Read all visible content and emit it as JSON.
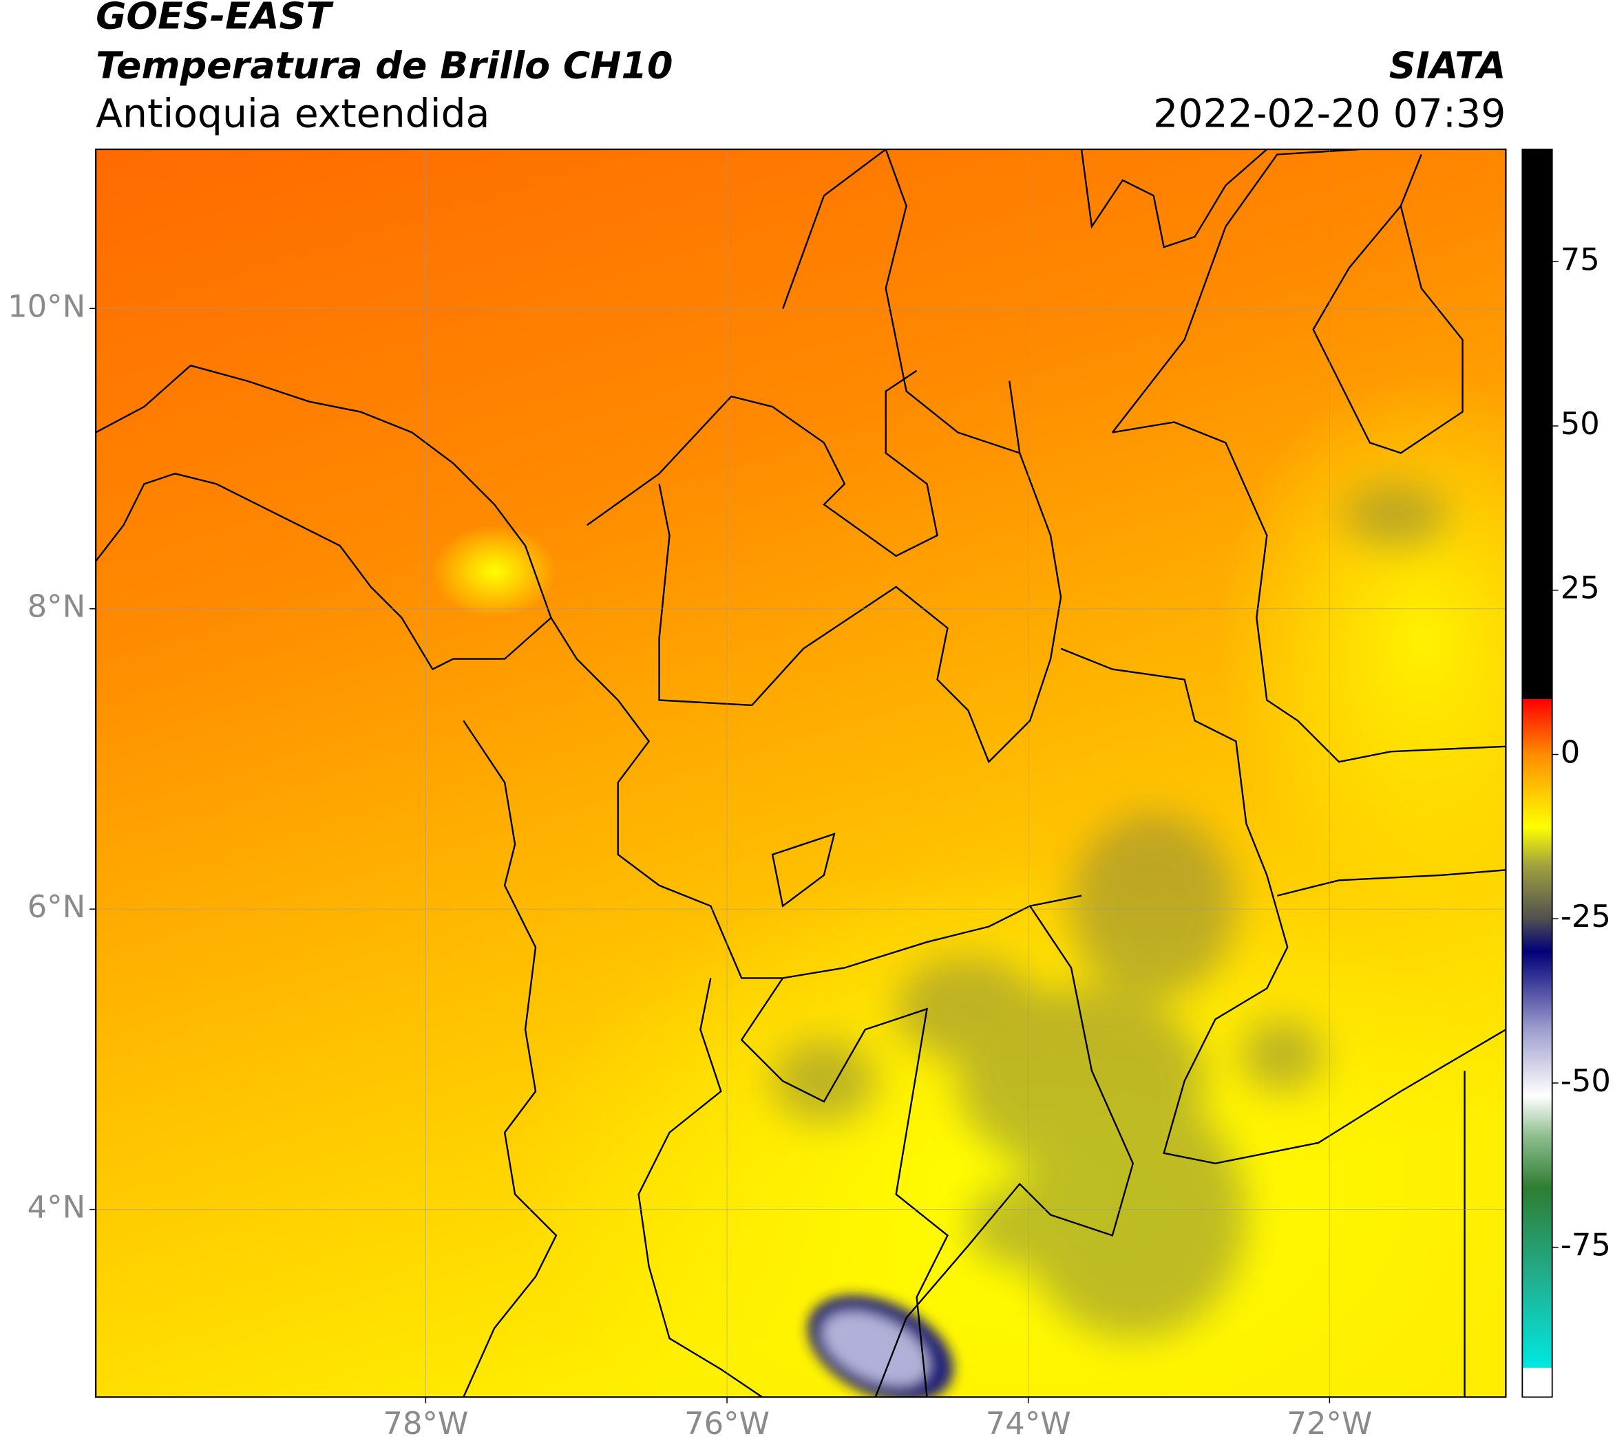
{
  "header": {
    "title": "GOES-EAST",
    "subtitle": "Temperatura de Brillo CH10",
    "region": "Antioquia extendida",
    "source": "SIATA",
    "datetime": "2022-02-20 07:39"
  },
  "map": {
    "xlim": [
      -80.19,
      -70.83
    ],
    "ylim": [
      2.75,
      11.06
    ],
    "xticks": [
      {
        "value": -78,
        "label": "78°W"
      },
      {
        "value": -76,
        "label": "76°W"
      },
      {
        "value": -74,
        "label": "74°W"
      },
      {
        "value": -72,
        "label": "72°W"
      }
    ],
    "yticks": [
      {
        "value": 4,
        "label": "4°N"
      },
      {
        "value": 6,
        "label": "6°N"
      },
      {
        "value": 8,
        "label": "8°N"
      },
      {
        "value": 10,
        "label": "10°N"
      }
    ],
    "grid": true
  },
  "colorbar": {
    "lim": [
      -97.8,
      92.1
    ],
    "ticks": [
      75,
      50,
      25,
      0,
      -25,
      -50,
      -75
    ],
    "stops": [
      {
        "value": -97.8,
        "color": "#ffffff"
      },
      {
        "value": -93.4,
        "color": "#ffffff"
      },
      {
        "value": -93.3,
        "color": "#00e8e0"
      },
      {
        "value": -80,
        "color": "#20b090"
      },
      {
        "value": -66,
        "color": "#2e7d32"
      },
      {
        "value": -58,
        "color": "#8fbf8f"
      },
      {
        "value": -52,
        "color": "#ffffff"
      },
      {
        "value": -42,
        "color": "#a0a0d0"
      },
      {
        "value": -30,
        "color": "#00007a"
      },
      {
        "value": -25,
        "color": "#505050"
      },
      {
        "value": -17,
        "color": "#a0a040"
      },
      {
        "value": -11,
        "color": "#ffff00"
      },
      {
        "value": 0,
        "color": "#ff8c00"
      },
      {
        "value": 8.4,
        "color": "#ff0000"
      },
      {
        "value": 8.5,
        "color": "#000000"
      },
      {
        "value": 92.1,
        "color": "#000000"
      }
    ]
  }
}
